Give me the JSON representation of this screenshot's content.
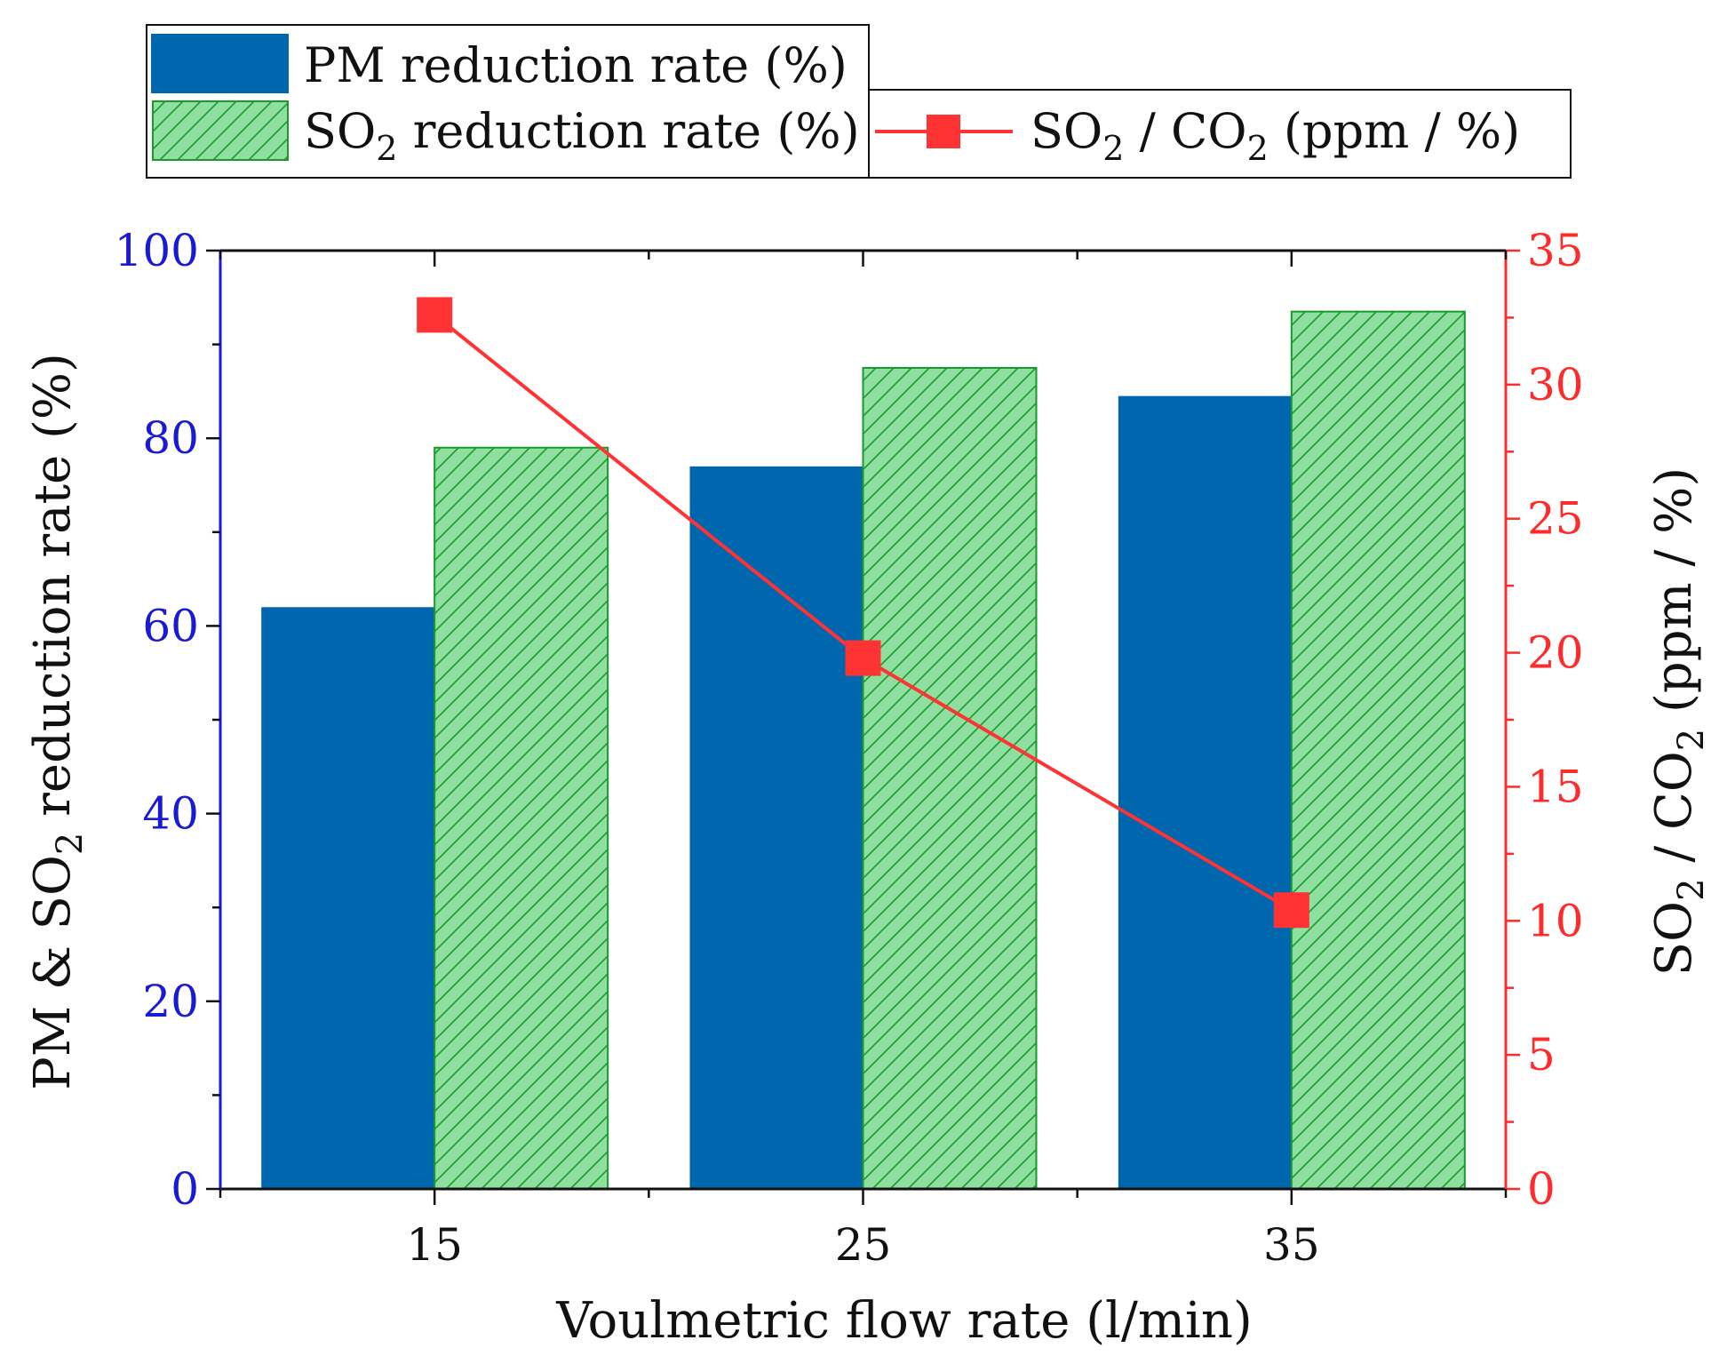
{
  "chart_data": {
    "type": "bar",
    "categories": [
      "15",
      "25",
      "35"
    ],
    "xlabel": "Voulmetric flow rate (l/min)",
    "ylabel": "PM & SO2 reduction rate (%)",
    "y2label": "SO2 / CO2 (ppm / %)",
    "ylim": [
      0,
      100
    ],
    "y2lim": [
      0,
      35
    ],
    "yticks": [
      "0",
      "20",
      "40",
      "60",
      "80",
      "100"
    ],
    "y2ticks": [
      "0",
      "5",
      "10",
      "15",
      "20",
      "25",
      "30",
      "35"
    ],
    "series": [
      {
        "name": "PM reduction rate (%)",
        "type": "bar",
        "axis": "left",
        "color": "#0066ad",
        "values": [
          62,
          77,
          84.5
        ]
      },
      {
        "name": "SO2 reduction rate (%)",
        "type": "bar",
        "axis": "left",
        "color": "#8fe0a0",
        "hatch_color": "#1a9a2a",
        "values": [
          79,
          87.5,
          93.5
        ]
      },
      {
        "name": "SO2 / CO2 (ppm / %)",
        "type": "line",
        "axis": "right",
        "color": "#ff3333",
        "marker": "square",
        "values": [
          32.6,
          19.8,
          10.4
        ]
      }
    ],
    "legend": {
      "position": "top",
      "items": [
        {
          "prefix": "PM reduction rate (%)",
          "sub1": "",
          "mid": "",
          "sub2": "",
          "suffix": ""
        },
        {
          "prefix": "SO",
          "sub1": "2",
          "mid": " reduction rate (%)",
          "sub2": "",
          "suffix": ""
        },
        {
          "prefix": "SO",
          "sub1": "2",
          "mid": " / CO",
          "sub2": "2",
          "suffix": " (ppm / %)"
        }
      ]
    },
    "ylabel_parts": {
      "prefix": "PM & SO",
      "sub": "2",
      "suffix": " reduction rate (%)"
    },
    "y2label_parts": {
      "prefix": "SO",
      "sub1": "2",
      "mid": " / CO",
      "sub2": "2",
      "suffix": " (ppm / %)"
    },
    "colors": {
      "left_axis": "#1a1ad6",
      "right_axis": "#ff2a2a"
    }
  }
}
